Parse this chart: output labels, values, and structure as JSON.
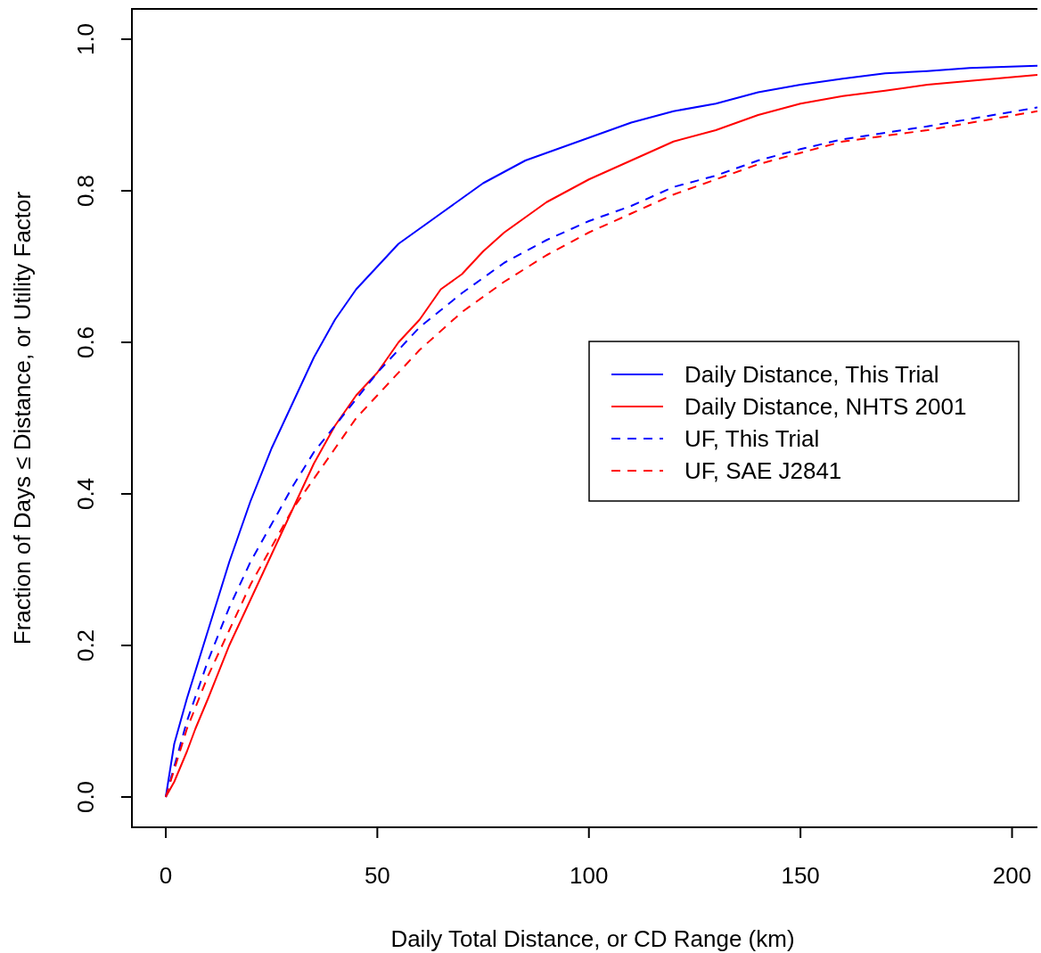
{
  "chart_data": {
    "type": "line",
    "xlabel": "Daily Total Distance, or CD Range (km)",
    "ylabel": "Fraction of Days ≤ Distance, or Utility Factor",
    "xlim": [
      -8,
      206
    ],
    "ylim": [
      -0.04,
      1.04
    ],
    "xticks": [
      0,
      50,
      100,
      150,
      200
    ],
    "yticks": [
      {
        "value": 0,
        "label": "0.0"
      },
      {
        "value": 0.2,
        "label": "0.2"
      },
      {
        "value": 0.4,
        "label": "0.4"
      },
      {
        "value": 0.6,
        "label": "0.6"
      },
      {
        "value": 0.8,
        "label": "0.8"
      },
      {
        "value": 1,
        "label": "1.0"
      }
    ],
    "legend": "right",
    "grid": false,
    "marker": "none",
    "series": [
      {
        "name": "Daily Distance, This Trial",
        "color": "#0000ff",
        "line_style": "solid",
        "x": [
          0,
          2,
          5,
          10,
          15,
          20,
          25,
          30,
          35,
          40,
          45,
          50,
          55,
          60,
          65,
          70,
          75,
          80,
          85,
          90,
          100,
          110,
          120,
          130,
          140,
          150,
          160,
          170,
          180,
          190,
          206
        ],
        "values": [
          0,
          0.07,
          0.13,
          0.22,
          0.31,
          0.39,
          0.46,
          0.52,
          0.58,
          0.63,
          0.67,
          0.7,
          0.73,
          0.75,
          0.77,
          0.79,
          0.81,
          0.825,
          0.84,
          0.85,
          0.87,
          0.89,
          0.905,
          0.915,
          0.93,
          0.94,
          0.948,
          0.955,
          0.958,
          0.962,
          0.965
        ]
      },
      {
        "name": "Daily Distance, NHTS 2001",
        "color": "#ff0000",
        "line_style": "solid",
        "x": [
          0,
          2,
          5,
          7,
          10,
          15,
          20,
          25,
          30,
          35,
          40,
          45,
          50,
          55,
          60,
          65,
          70,
          75,
          80,
          85,
          90,
          95,
          100,
          110,
          120,
          130,
          140,
          150,
          160,
          170,
          180,
          190,
          206
        ],
        "values": [
          0,
          0.02,
          0.06,
          0.09,
          0.13,
          0.2,
          0.26,
          0.32,
          0.38,
          0.44,
          0.49,
          0.53,
          0.56,
          0.6,
          0.63,
          0.67,
          0.69,
          0.72,
          0.745,
          0.765,
          0.785,
          0.8,
          0.815,
          0.84,
          0.865,
          0.88,
          0.9,
          0.915,
          0.925,
          0.932,
          0.94,
          0.945,
          0.953
        ]
      },
      {
        "name": "UF, This Trial",
        "color": "#0000ff",
        "line_style": "dashed",
        "x": [
          0,
          5,
          10,
          15,
          20,
          25,
          30,
          35,
          40,
          45,
          50,
          60,
          70,
          80,
          90,
          100,
          110,
          120,
          130,
          140,
          150,
          160,
          180,
          206
        ],
        "values": [
          0,
          0.1,
          0.18,
          0.25,
          0.31,
          0.36,
          0.41,
          0.455,
          0.49,
          0.525,
          0.56,
          0.62,
          0.665,
          0.705,
          0.735,
          0.76,
          0.78,
          0.805,
          0.82,
          0.84,
          0.855,
          0.868,
          0.885,
          0.91
        ]
      },
      {
        "name": "UF, SAE J2841",
        "color": "#ff0000",
        "line_style": "dashed",
        "x": [
          0,
          5,
          10,
          15,
          20,
          25,
          30,
          35,
          40,
          45,
          50,
          60,
          70,
          80,
          90,
          100,
          110,
          120,
          130,
          140,
          150,
          160,
          180,
          206
        ],
        "values": [
          0,
          0.09,
          0.16,
          0.22,
          0.28,
          0.33,
          0.38,
          0.42,
          0.46,
          0.5,
          0.53,
          0.59,
          0.64,
          0.68,
          0.715,
          0.745,
          0.77,
          0.795,
          0.815,
          0.835,
          0.85,
          0.865,
          0.88,
          0.905
        ]
      }
    ]
  }
}
